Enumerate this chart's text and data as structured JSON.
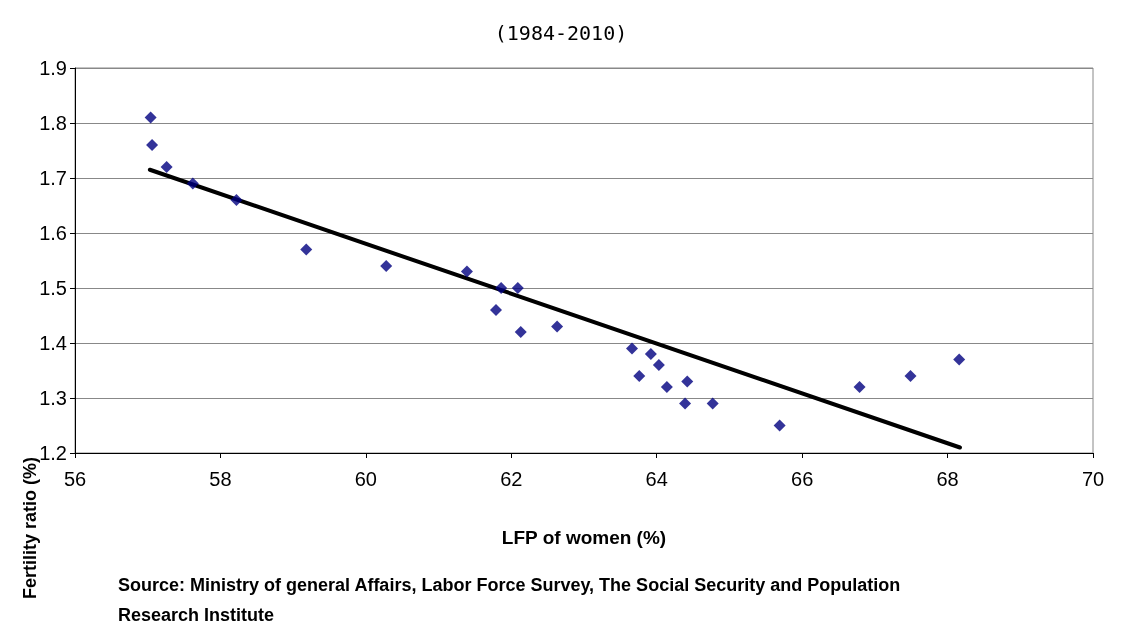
{
  "chart_data": {
    "type": "scatter",
    "title": "(1984-2010)",
    "xlabel": "LFP of women (%)",
    "ylabel": "Fertility ratio (%)",
    "xlim": [
      56,
      70
    ],
    "xticks": [
      56,
      58,
      60,
      62,
      64,
      66,
      68,
      70
    ],
    "ylim": [
      1.2,
      1.9
    ],
    "yticks": [
      1.2,
      1.3,
      1.4,
      1.5,
      1.6,
      1.7,
      1.8,
      1.9
    ],
    "grid": "y",
    "marker": "diamond",
    "series": [
      {
        "color": "#000080",
        "x": [
          57.04,
          57.06,
          57.26,
          57.62,
          58.22,
          59.18,
          60.28,
          61.39,
          61.86,
          62.09,
          61.79,
          62.13,
          62.63,
          63.66,
          63.92,
          64.03,
          63.76,
          64.14,
          64.42,
          64.39,
          64.77,
          65.69,
          66.79,
          67.49,
          68.16
        ],
        "values": [
          1.81,
          1.76,
          1.72,
          1.69,
          1.66,
          1.57,
          1.54,
          1.53,
          1.5,
          1.5,
          1.46,
          1.42,
          1.43,
          1.39,
          1.38,
          1.36,
          1.34,
          1.32,
          1.33,
          1.29,
          1.29,
          1.25,
          1.32,
          1.34,
          1.37
        ]
      },
      {
        "type": "line",
        "marker": "none",
        "color": "#000000",
        "x": [
          57.03,
          68.17
        ],
        "values": [
          1.715,
          1.21
        ]
      }
    ],
    "annotations": [
      "Source: Ministry of general Affairs, Labor Force Survey, The Social Security and Population Research Institute"
    ]
  }
}
